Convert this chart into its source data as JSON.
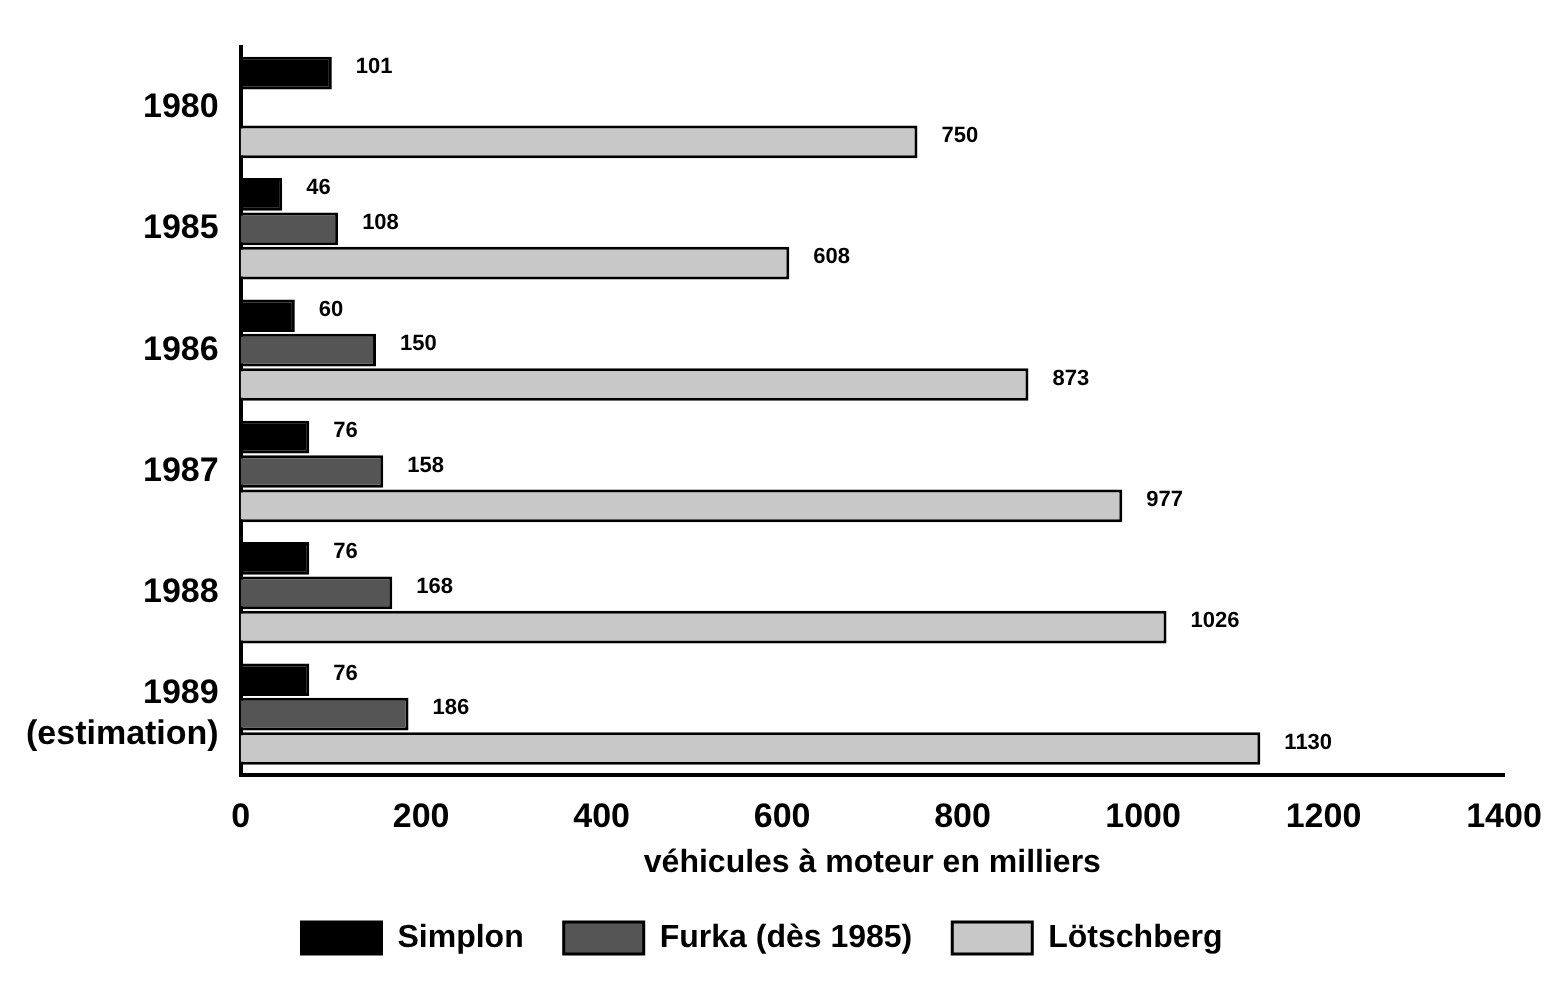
{
  "chart_data": {
    "type": "bar",
    "orientation": "horizontal",
    "xlabel": "véhicules à moteur en milliers",
    "categories": [
      "1980",
      "1985",
      "1986",
      "1987",
      "1988",
      "1989\n(estimation)"
    ],
    "series": [
      {
        "name": "Simplon",
        "color": "#000000",
        "values": [
          101,
          46,
          60,
          76,
          76,
          76
        ]
      },
      {
        "name": "Furka (dès 1985)",
        "color": "#555555",
        "values": [
          null,
          108,
          150,
          158,
          168,
          186
        ]
      },
      {
        "name": "Lötschberg",
        "color": "#c8c8c8",
        "values": [
          750,
          608,
          873,
          977,
          1026,
          1130
        ]
      }
    ],
    "xlim": [
      0,
      1400
    ],
    "xticks": [
      0,
      200,
      400,
      600,
      800,
      1000,
      1200,
      1400
    ],
    "grid": false,
    "legend": "bottom",
    "data_labels": true
  }
}
